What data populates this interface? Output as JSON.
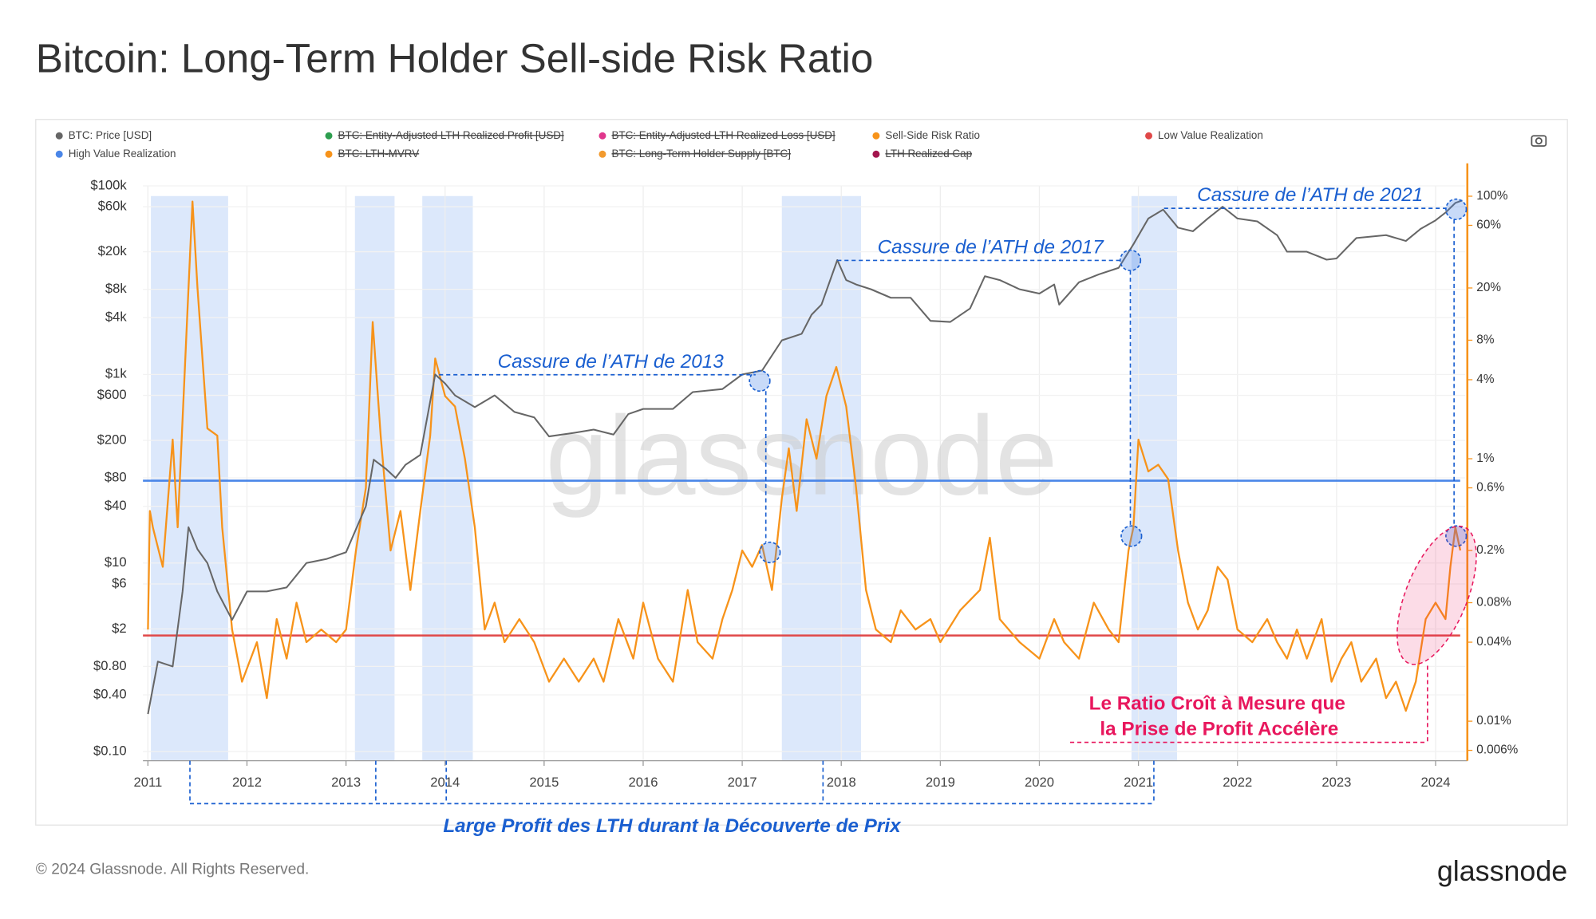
{
  "chart_data": {
    "type": "line",
    "title": "Bitcoin: Long-Term Holder Sell-side Risk Ratio",
    "footer": "© 2024 Glassnode. All Rights Reserved.",
    "brand": "glassnode",
    "watermark": "glassnode",
    "log_scale": true,
    "grid": true,
    "xlim": [
      2010.95,
      2024.3
    ],
    "xticks": [
      2011,
      2012,
      2013,
      2014,
      2015,
      2016,
      2017,
      2018,
      2019,
      2020,
      2021,
      2022,
      2023,
      2024
    ],
    "ylim": [
      0.08,
      100000
    ],
    "yticks": [
      {
        "value": 100000,
        "label": "$100k"
      },
      {
        "value": 60000,
        "label": "$60k"
      },
      {
        "value": 20000,
        "label": "$20k"
      },
      {
        "value": 8000,
        "label": "$8k"
      },
      {
        "value": 4000,
        "label": "$4k"
      },
      {
        "value": 1000,
        "label": "$1k"
      },
      {
        "value": 600,
        "label": "$600"
      },
      {
        "value": 200,
        "label": "$200"
      },
      {
        "value": 80,
        "label": "$80"
      },
      {
        "value": 40,
        "label": "$40"
      },
      {
        "value": 10,
        "label": "$10"
      },
      {
        "value": 6,
        "label": "$6"
      },
      {
        "value": 2,
        "label": "$2"
      },
      {
        "value": 0.8,
        "label": "$0.80"
      },
      {
        "value": 0.4,
        "label": "$0.40"
      },
      {
        "value": 0.1,
        "label": "$0.10"
      }
    ],
    "y2lim": [
      0.005,
      120
    ],
    "y2ticks": [
      {
        "value": 100,
        "label": "100%"
      },
      {
        "value": 60,
        "label": "60%"
      },
      {
        "value": 20,
        "label": "20%"
      },
      {
        "value": 8,
        "label": "8%"
      },
      {
        "value": 4,
        "label": "4%"
      },
      {
        "value": 1,
        "label": "1%"
      },
      {
        "value": 0.6,
        "label": "0.6%"
      },
      {
        "value": 0.2,
        "label": "0.2%"
      },
      {
        "value": 0.08,
        "label": "0.08%"
      },
      {
        "value": 0.04,
        "label": "0.04%"
      },
      {
        "value": 0.01,
        "label": "0.01%"
      },
      {
        "value": 0.006,
        "label": "0.006%"
      }
    ],
    "y2_axis_color": "#f7931a",
    "shaded_spans": [
      [
        2011.03,
        2011.81
      ],
      [
        2013.09,
        2013.49
      ],
      [
        2013.77,
        2014.28
      ],
      [
        2017.4,
        2018.2
      ],
      [
        2020.93,
        2021.39
      ]
    ],
    "shade_color": "#dce8fb",
    "series": [
      {
        "name": "BTC: Price [USD]",
        "color": "#666666",
        "kind": "line",
        "x": [
          2011.0,
          2011.1,
          2011.25,
          2011.35,
          2011.41,
          2011.5,
          2011.6,
          2011.7,
          2011.85,
          2012.0,
          2012.2,
          2012.4,
          2012.6,
          2012.8,
          2013.0,
          2013.2,
          2013.28,
          2013.4,
          2013.5,
          2013.6,
          2013.75,
          2013.9,
          2014.0,
          2014.1,
          2014.3,
          2014.5,
          2014.7,
          2014.9,
          2015.05,
          2015.3,
          2015.5,
          2015.7,
          2015.85,
          2016.0,
          2016.3,
          2016.5,
          2016.8,
          2017.0,
          2017.2,
          2017.4,
          2017.6,
          2017.7,
          2017.8,
          2017.96,
          2018.05,
          2018.15,
          2018.3,
          2018.5,
          2018.7,
          2018.9,
          2019.1,
          2019.3,
          2019.45,
          2019.6,
          2019.8,
          2020.0,
          2020.15,
          2020.2,
          2020.4,
          2020.6,
          2020.8,
          2020.95,
          2021.1,
          2021.25,
          2021.4,
          2021.55,
          2021.7,
          2021.85,
          2022.0,
          2022.2,
          2022.4,
          2022.5,
          2022.7,
          2022.9,
          2023.0,
          2023.2,
          2023.5,
          2023.7,
          2023.85,
          2024.0,
          2024.1,
          2024.2,
          2024.27
        ],
        "values": [
          0.25,
          0.9,
          0.8,
          5,
          24,
          14,
          10,
          5,
          2.5,
          5,
          5,
          5.5,
          10,
          11,
          13,
          40,
          125,
          100,
          80,
          110,
          140,
          1000,
          800,
          600,
          450,
          600,
          400,
          350,
          220,
          240,
          260,
          230,
          380,
          430,
          430,
          650,
          700,
          1000,
          1100,
          2300,
          2700,
          4300,
          5500,
          16300,
          10000,
          9000,
          8000,
          6500,
          6500,
          3700,
          3600,
          5000,
          11000,
          10000,
          8000,
          7200,
          9000,
          5500,
          9500,
          11500,
          13500,
          24000,
          45000,
          56000,
          36000,
          33000,
          45000,
          60000,
          45000,
          42000,
          30000,
          20000,
          20000,
          16500,
          17000,
          28000,
          30000,
          26000,
          35000,
          43000,
          52000,
          66000,
          70000
        ]
      },
      {
        "name": "Sell-Side Risk Ratio",
        "color": "#f7931a",
        "kind": "line",
        "axis": "y2",
        "x": [
          2011.0,
          2011.02,
          2011.05,
          2011.15,
          2011.25,
          2011.3,
          2011.35,
          2011.4,
          2011.45,
          2011.5,
          2011.6,
          2011.7,
          2011.75,
          2011.85,
          2011.95,
          2012.1,
          2012.2,
          2012.3,
          2012.4,
          2012.5,
          2012.6,
          2012.75,
          2012.9,
          2013.0,
          2013.1,
          2013.2,
          2013.27,
          2013.35,
          2013.45,
          2013.55,
          2013.65,
          2013.75,
          2013.85,
          2013.9,
          2014.0,
          2014.1,
          2014.2,
          2014.3,
          2014.4,
          2014.5,
          2014.6,
          2014.75,
          2014.9,
          2015.05,
          2015.2,
          2015.35,
          2015.5,
          2015.6,
          2015.75,
          2015.9,
          2016.0,
          2016.15,
          2016.3,
          2016.45,
          2016.55,
          2016.7,
          2016.8,
          2016.9,
          2017.0,
          2017.1,
          2017.2,
          2017.3,
          2017.4,
          2017.47,
          2017.55,
          2017.65,
          2017.75,
          2017.85,
          2017.95,
          2018.05,
          2018.15,
          2018.25,
          2018.35,
          2018.5,
          2018.6,
          2018.75,
          2018.9,
          2019.0,
          2019.2,
          2019.4,
          2019.5,
          2019.6,
          2019.8,
          2020.0,
          2020.15,
          2020.25,
          2020.4,
          2020.55,
          2020.7,
          2020.8,
          2020.9,
          2020.95,
          2021.0,
          2021.1,
          2021.2,
          2021.3,
          2021.4,
          2021.5,
          2021.6,
          2021.7,
          2021.8,
          2021.9,
          2022.0,
          2022.15,
          2022.3,
          2022.4,
          2022.5,
          2022.6,
          2022.7,
          2022.85,
          2022.95,
          2023.05,
          2023.15,
          2023.25,
          2023.4,
          2023.5,
          2023.6,
          2023.7,
          2023.8,
          2023.9,
          2024.0,
          2024.1,
          2024.15,
          2024.2,
          2024.25
        ],
        "values": [
          0.05,
          0.4,
          0.3,
          0.15,
          1.4,
          0.3,
          2,
          14,
          91,
          20,
          1.7,
          1.5,
          0.3,
          0.05,
          0.02,
          0.04,
          0.015,
          0.06,
          0.03,
          0.08,
          0.04,
          0.05,
          0.04,
          0.05,
          0.2,
          0.6,
          11,
          1.5,
          0.2,
          0.4,
          0.1,
          0.4,
          1.5,
          5.8,
          3,
          2.5,
          1,
          0.3,
          0.05,
          0.08,
          0.04,
          0.06,
          0.04,
          0.02,
          0.03,
          0.02,
          0.03,
          0.02,
          0.06,
          0.03,
          0.08,
          0.03,
          0.02,
          0.1,
          0.04,
          0.03,
          0.06,
          0.1,
          0.2,
          0.15,
          0.22,
          0.1,
          0.5,
          1.2,
          0.4,
          2,
          1,
          3,
          5,
          2.5,
          0.6,
          0.1,
          0.05,
          0.04,
          0.07,
          0.05,
          0.06,
          0.04,
          0.07,
          0.1,
          0.25,
          0.06,
          0.04,
          0.03,
          0.06,
          0.04,
          0.03,
          0.08,
          0.05,
          0.04,
          0.2,
          0.3,
          1.4,
          0.8,
          0.9,
          0.7,
          0.2,
          0.08,
          0.05,
          0.07,
          0.15,
          0.12,
          0.05,
          0.04,
          0.06,
          0.04,
          0.03,
          0.05,
          0.03,
          0.06,
          0.02,
          0.03,
          0.04,
          0.02,
          0.03,
          0.015,
          0.02,
          0.012,
          0.02,
          0.06,
          0.08,
          0.06,
          0.15,
          0.3,
          0.2
        ]
      },
      {
        "name": "Low Value Realization",
        "color": "#e04848",
        "kind": "hline",
        "axis": "y2",
        "value": 0.045
      },
      {
        "name": "High Value Realization",
        "color": "#4a86e8",
        "kind": "hline",
        "axis": "y2",
        "value": 0.68
      }
    ],
    "hidden_series": [
      {
        "name": "BTC: Entity-Adjusted LTH Realized Profit [USD]",
        "color": "#2e9e4f"
      },
      {
        "name": "BTC: Entity-Adjusted LTH Realized Loss [USD]",
        "color": "#e0368c"
      },
      {
        "name": "BTC: LTH-MVRV",
        "color": "#f7931a"
      },
      {
        "name": "BTC: Long-Term Holder Supply [BTC]",
        "color": "#f29a2e"
      },
      {
        "name": "LTH Realized Cap",
        "color": "#a3164e"
      }
    ],
    "annotations": [
      "Cassure de l’ATH de 2013",
      "Cassure de l’ATH de 2017",
      "Cassure de l’ATH de 2021",
      "Large Profit des LTH durant la Découverte de Prix",
      "Le Ratio Croît à Mesure que",
      "la Prise de Profit Accélère"
    ]
  }
}
